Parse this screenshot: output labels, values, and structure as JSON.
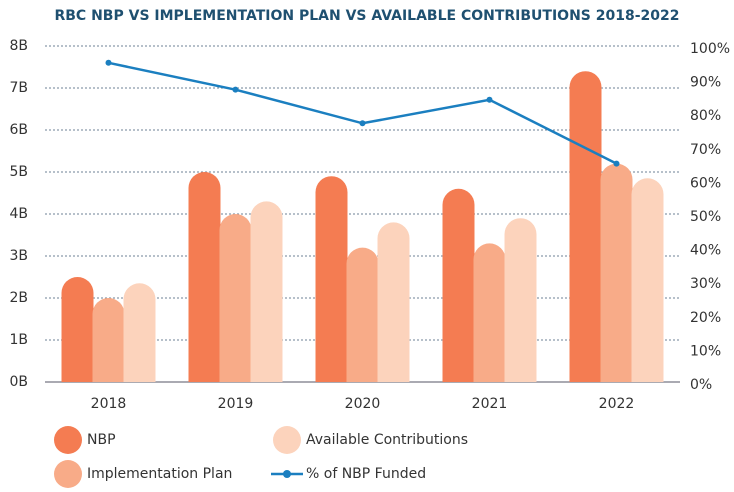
{
  "chart_data": {
    "type": "bar",
    "title": "RBC NBP VS IMPLEMENTATION PLAN VS AVAILABLE CONTRIBUTIONS 2018-2022",
    "categories": [
      "2018",
      "2019",
      "2020",
      "2021",
      "2022"
    ],
    "series": [
      {
        "name": "NBP",
        "color": "#f47c52",
        "values": [
          2.5,
          5.0,
          4.9,
          4.6,
          7.4
        ]
      },
      {
        "name": "Implementation Plan",
        "color": "#f8ab88",
        "values": [
          2.0,
          4.0,
          3.2,
          3.3,
          5.2
        ]
      },
      {
        "name": "Available Contributions",
        "color": "#fcd3bc",
        "values": [
          2.35,
          4.3,
          3.8,
          3.9,
          4.85
        ]
      },
      {
        "name": "% of NBP Funded",
        "color": "#1b7fc0",
        "type": "line",
        "axis": "y2",
        "values": [
          95,
          87,
          77,
          84,
          65
        ]
      }
    ],
    "ylim": [
      0,
      8
    ],
    "yticks": [
      {
        "value": 0,
        "label": "0B"
      },
      {
        "value": 1,
        "label": "1B"
      },
      {
        "value": 2,
        "label": "2B"
      },
      {
        "value": 3,
        "label": "3B"
      },
      {
        "value": 4,
        "label": "4B"
      },
      {
        "value": 5,
        "label": "5B"
      },
      {
        "value": 6,
        "label": "6B"
      },
      {
        "value": 7,
        "label": "7B"
      },
      {
        "value": 8,
        "label": "8B"
      }
    ],
    "y2lim": [
      0,
      100
    ],
    "y2ticks": [
      {
        "value": 0,
        "label": "0%"
      },
      {
        "value": 10,
        "label": "10%"
      },
      {
        "value": 20,
        "label": "20%"
      },
      {
        "value": 30,
        "label": "30%"
      },
      {
        "value": 40,
        "label": "40%"
      },
      {
        "value": 50,
        "label": "50%"
      },
      {
        "value": 60,
        "label": "60%"
      },
      {
        "value": 70,
        "label": "70%"
      },
      {
        "value": 80,
        "label": "80%"
      },
      {
        "value": 90,
        "label": "90%"
      },
      {
        "value": 100,
        "label": "100%"
      }
    ],
    "grid": true
  }
}
